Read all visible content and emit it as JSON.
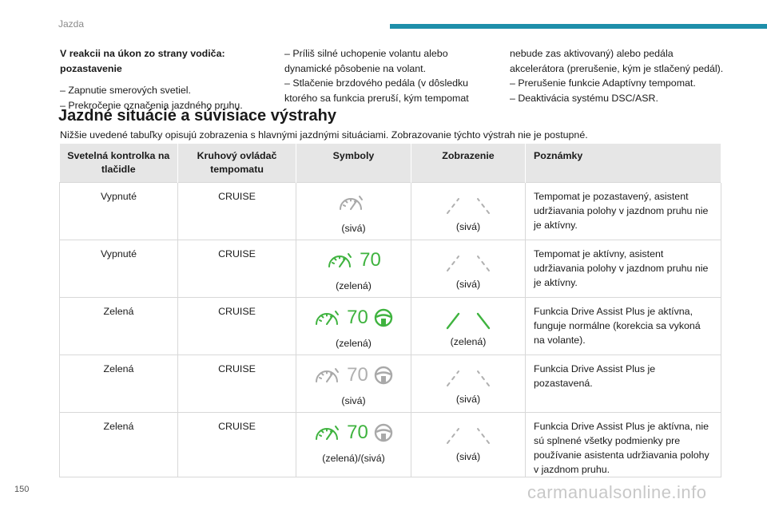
{
  "header": {
    "section": "Jazda"
  },
  "intro_columns": {
    "col1": {
      "subheading": [
        "V reakcii na úkon zo strany vodiča:",
        "pozastavenie"
      ],
      "lines": [
        "– Zapnutie smerových svetiel.",
        "– Prekročenie označenia jazdného pruhu."
      ]
    },
    "col2": {
      "lines": [
        "– Príliš silné uchopenie volantu alebo",
        "dynamické pôsobenie na volant.",
        "– Stlačenie brzdového pedála (v dôsledku",
        "ktorého sa funkcia preruší, kým tempomat"
      ]
    },
    "col3": {
      "lines": [
        "nebude zas aktivovaný) alebo pedála",
        "akcelerátora (prerušenie, kým je stlačený pedál).",
        "– Prerušenie funkcie Adaptívny tempomat.",
        "– Deaktivácia systému DSC/ASR."
      ]
    }
  },
  "section": {
    "heading": "Jazdné situácie a súvisiace výstrahy",
    "intro": "Nižšie uvedené tabuľky opisujú zobrazenia s hlavnými jazdnými situáciami.  Zobrazovanie týchto výstrah nie je postupné."
  },
  "table": {
    "headers": [
      "Svetelná kontrolka na tlačidle",
      "Kruhový ovládač tempomatu",
      "Symboly",
      "Zobrazenie",
      "Poznámky"
    ],
    "rows": [
      {
        "light": "Vypnuté",
        "control": "CRUISE",
        "speed": "",
        "symbol_caption": "(sivá)",
        "display_caption": "(sivá)",
        "note": "Tempomat je pozastavený, asistent udržiavania polohy v jazdnom pruhu nie je aktívny."
      },
      {
        "light": "Vypnuté",
        "control": "CRUISE",
        "speed": "70",
        "symbol_caption": "(zelená)",
        "display_caption": "(sivá)",
        "note": "Tempomat je aktívny, asistent udržiavania polohy v jazdnom pruhu nie je aktívny."
      },
      {
        "light": "Zelená",
        "control": "CRUISE",
        "speed": "70",
        "symbol_caption": "(zelená)",
        "display_caption": "(zelená)",
        "note": "Funkcia Drive Assist Plus je aktívna, funguje normálne (korekcia sa vykoná na volante)."
      },
      {
        "light": "Zelená",
        "control": "CRUISE",
        "speed": "70",
        "symbol_caption": "(sivá)",
        "display_caption": "(sivá)",
        "note": "Funkcia Drive Assist Plus je pozastavená."
      },
      {
        "light": "Zelená",
        "control": "CRUISE",
        "speed": "70",
        "symbol_caption": "(zelená)/(sivá)",
        "display_caption": "(sivá)",
        "note": "Funkcia Drive Assist Plus je aktívna, nie sú splnené všetky podmienky pre používanie asistenta udržiavania polohy v jazdnom pruhu."
      }
    ]
  },
  "colors": {
    "accent": "#1e8faa",
    "active_green": "#3fb33f",
    "inactive_gray": "#b0b0b0"
  },
  "icons": {
    "cruise": "speedometer-icon",
    "wheel": "steering-wheel-icon",
    "lanes": "lane-markings-icon"
  },
  "footer": {
    "page_number": "150",
    "watermark": "carmanualsonline.info"
  }
}
